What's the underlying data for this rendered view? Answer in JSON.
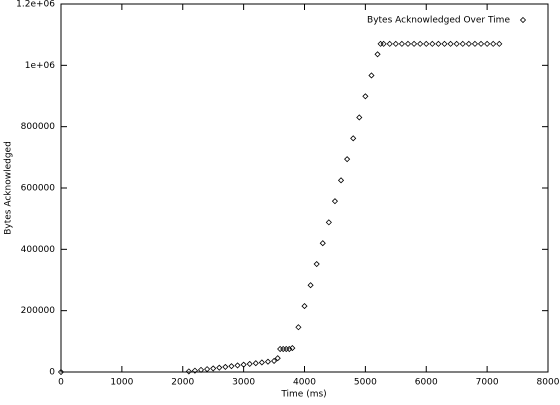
{
  "chart_data": {
    "type": "scatter",
    "x_label": "Time (ms)",
    "y_label": "Bytes Acknowledged",
    "series": [
      {
        "name": "Bytes Acknowledged Over Time",
        "color": "#000000",
        "marker": "diamond",
        "x": [
          0,
          2100,
          2200,
          2300,
          2400,
          2500,
          2600,
          2700,
          2800,
          2900,
          3000,
          3100,
          3200,
          3300,
          3400,
          3500,
          3560,
          3600,
          3650,
          3700,
          3750,
          3800,
          3900,
          4000,
          4100,
          4200,
          4300,
          4400,
          4500,
          4600,
          4700,
          4800,
          4900,
          5000,
          5100,
          5200,
          5250,
          5300,
          5400,
          5500,
          5600,
          5700,
          5800,
          5900,
          6000,
          6100,
          6200,
          6300,
          6400,
          6500,
          6600,
          6700,
          6800,
          6900,
          7000,
          7100,
          7200
        ],
        "values": [
          0,
          2000,
          4400,
          6900,
          9300,
          11700,
          14100,
          16600,
          19000,
          21400,
          23900,
          26300,
          28700,
          31100,
          33600,
          36000,
          45000,
          75000,
          75000,
          75000,
          75000,
          78000,
          146000,
          215000,
          283000,
          352000,
          420000,
          488000,
          557000,
          625000,
          694000,
          762000,
          830000,
          899000,
          967000,
          1036000,
          1070000,
          1070000,
          1070000,
          1070000,
          1070000,
          1070000,
          1070000,
          1070000,
          1070000,
          1070000,
          1070000,
          1070000,
          1070000,
          1070000,
          1070000,
          1070000,
          1070000,
          1070000,
          1070000,
          1070000,
          1070000
        ]
      }
    ],
    "xlim": [
      0,
      8000
    ],
    "xticks": [
      0,
      1000,
      2000,
      3000,
      4000,
      5000,
      6000,
      7000,
      8000
    ],
    "ylim": [
      0,
      1200000
    ],
    "yticks": [
      0,
      200000,
      400000,
      600000,
      800000,
      {
        "value": 1000000,
        "label": "1e+06"
      },
      {
        "value": 1200000,
        "label": "1.2e+06"
      }
    ],
    "legend": "upper right"
  }
}
